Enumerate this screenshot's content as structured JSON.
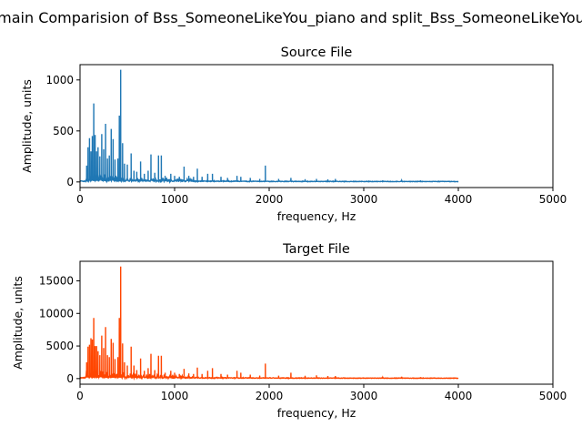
{
  "figure": {
    "title": "main Comparision of Bss_SomeoneLikeYou_piano and split_Bss_SomeoneLikeYou"
  },
  "chart_data": [
    {
      "type": "line",
      "title": "Source File",
      "xlabel": "frequency, Hz",
      "ylabel": "Amplitude, units",
      "xlim": [
        0,
        5000
      ],
      "ylim": [
        -55,
        1150
      ],
      "xticks": [
        0,
        1000,
        2000,
        3000,
        4000,
        5000
      ],
      "yticks": [
        0,
        500,
        1000
      ],
      "grid": false,
      "color": "#1f77b4",
      "series": [
        {
          "x_range": [
            0,
            4000
          ],
          "peaks": [
            [
              70,
              160
            ],
            [
              85,
              340
            ],
            [
              100,
              430
            ],
            [
              115,
              300
            ],
            [
              130,
              450
            ],
            [
              145,
              770
            ],
            [
              160,
              460
            ],
            [
              175,
              300
            ],
            [
              190,
              340
            ],
            [
              210,
              250
            ],
            [
              230,
              470
            ],
            [
              250,
              320
            ],
            [
              270,
              570
            ],
            [
              290,
              230
            ],
            [
              310,
              260
            ],
            [
              330,
              520
            ],
            [
              350,
              420
            ],
            [
              370,
              220
            ],
            [
              400,
              230
            ],
            [
              415,
              650
            ],
            [
              430,
              1100
            ],
            [
              450,
              380
            ],
            [
              470,
              180
            ],
            [
              500,
              170
            ],
            [
              540,
              280
            ],
            [
              570,
              110
            ],
            [
              600,
              100
            ],
            [
              640,
              200
            ],
            [
              680,
              80
            ],
            [
              720,
              110
            ],
            [
              750,
              270
            ],
            [
              790,
              90
            ],
            [
              830,
              260
            ],
            [
              860,
              260
            ],
            [
              900,
              60
            ],
            [
              960,
              80
            ],
            [
              1000,
              60
            ],
            [
              1050,
              50
            ],
            [
              1100,
              150
            ],
            [
              1150,
              60
            ],
            [
              1200,
              50
            ],
            [
              1240,
              130
            ],
            [
              1290,
              50
            ],
            [
              1350,
              80
            ],
            [
              1400,
              80
            ],
            [
              1490,
              50
            ],
            [
              1560,
              40
            ],
            [
              1660,
              60
            ],
            [
              1700,
              50
            ],
            [
              1800,
              40
            ],
            [
              1900,
              30
            ],
            [
              1960,
              160
            ],
            [
              2100,
              30
            ],
            [
              2230,
              40
            ],
            [
              2380,
              25
            ],
            [
              2500,
              30
            ],
            [
              2620,
              25
            ],
            [
              2700,
              30
            ],
            [
              3200,
              15
            ],
            [
              3400,
              20
            ],
            [
              3600,
              15
            ]
          ]
        }
      ]
    },
    {
      "type": "line",
      "title": "Target File",
      "xlabel": "frequency, Hz",
      "ylabel": "Amplitude, units",
      "xlim": [
        0,
        5000
      ],
      "ylim": [
        -860,
        18000
      ],
      "xticks": [
        0,
        1000,
        2000,
        3000,
        4000,
        5000
      ],
      "yticks": [
        0,
        5000,
        10000,
        15000
      ],
      "grid": false,
      "color": "#ff4500",
      "series": [
        {
          "x_range": [
            0,
            4000
          ],
          "peaks": [
            [
              70,
              2500
            ],
            [
              85,
              4900
            ],
            [
              100,
              5200
            ],
            [
              115,
              6200
            ],
            [
              130,
              6000
            ],
            [
              145,
              9300
            ],
            [
              160,
              5000
            ],
            [
              175,
              5000
            ],
            [
              190,
              4200
            ],
            [
              210,
              3600
            ],
            [
              230,
              6600
            ],
            [
              250,
              4700
            ],
            [
              270,
              7900
            ],
            [
              290,
              3600
            ],
            [
              310,
              3300
            ],
            [
              330,
              6100
            ],
            [
              350,
              5500
            ],
            [
              370,
              3000
            ],
            [
              400,
              3300
            ],
            [
              415,
              9300
            ],
            [
              430,
              17200
            ],
            [
              450,
              5400
            ],
            [
              470,
              2500
            ],
            [
              500,
              2000
            ],
            [
              540,
              4900
            ],
            [
              570,
              2000
            ],
            [
              600,
              1300
            ],
            [
              640,
              3100
            ],
            [
              680,
              1200
            ],
            [
              720,
              1600
            ],
            [
              750,
              3800
            ],
            [
              790,
              1300
            ],
            [
              830,
              3500
            ],
            [
              860,
              3500
            ],
            [
              900,
              900
            ],
            [
              960,
              1200
            ],
            [
              1000,
              900
            ],
            [
              1050,
              700
            ],
            [
              1100,
              1500
            ],
            [
              1150,
              800
            ],
            [
              1200,
              700
            ],
            [
              1240,
              1700
            ],
            [
              1290,
              700
            ],
            [
              1350,
              1200
            ],
            [
              1400,
              1600
            ],
            [
              1490,
              700
            ],
            [
              1560,
              600
            ],
            [
              1660,
              1200
            ],
            [
              1700,
              900
            ],
            [
              1800,
              600
            ],
            [
              1900,
              450
            ],
            [
              1960,
              2300
            ],
            [
              2100,
              450
            ],
            [
              2230,
              900
            ],
            [
              2380,
              400
            ],
            [
              2500,
              500
            ],
            [
              2620,
              400
            ],
            [
              2700,
              400
            ],
            [
              3200,
              250
            ],
            [
              3400,
              300
            ],
            [
              3600,
              200
            ]
          ]
        }
      ]
    }
  ]
}
